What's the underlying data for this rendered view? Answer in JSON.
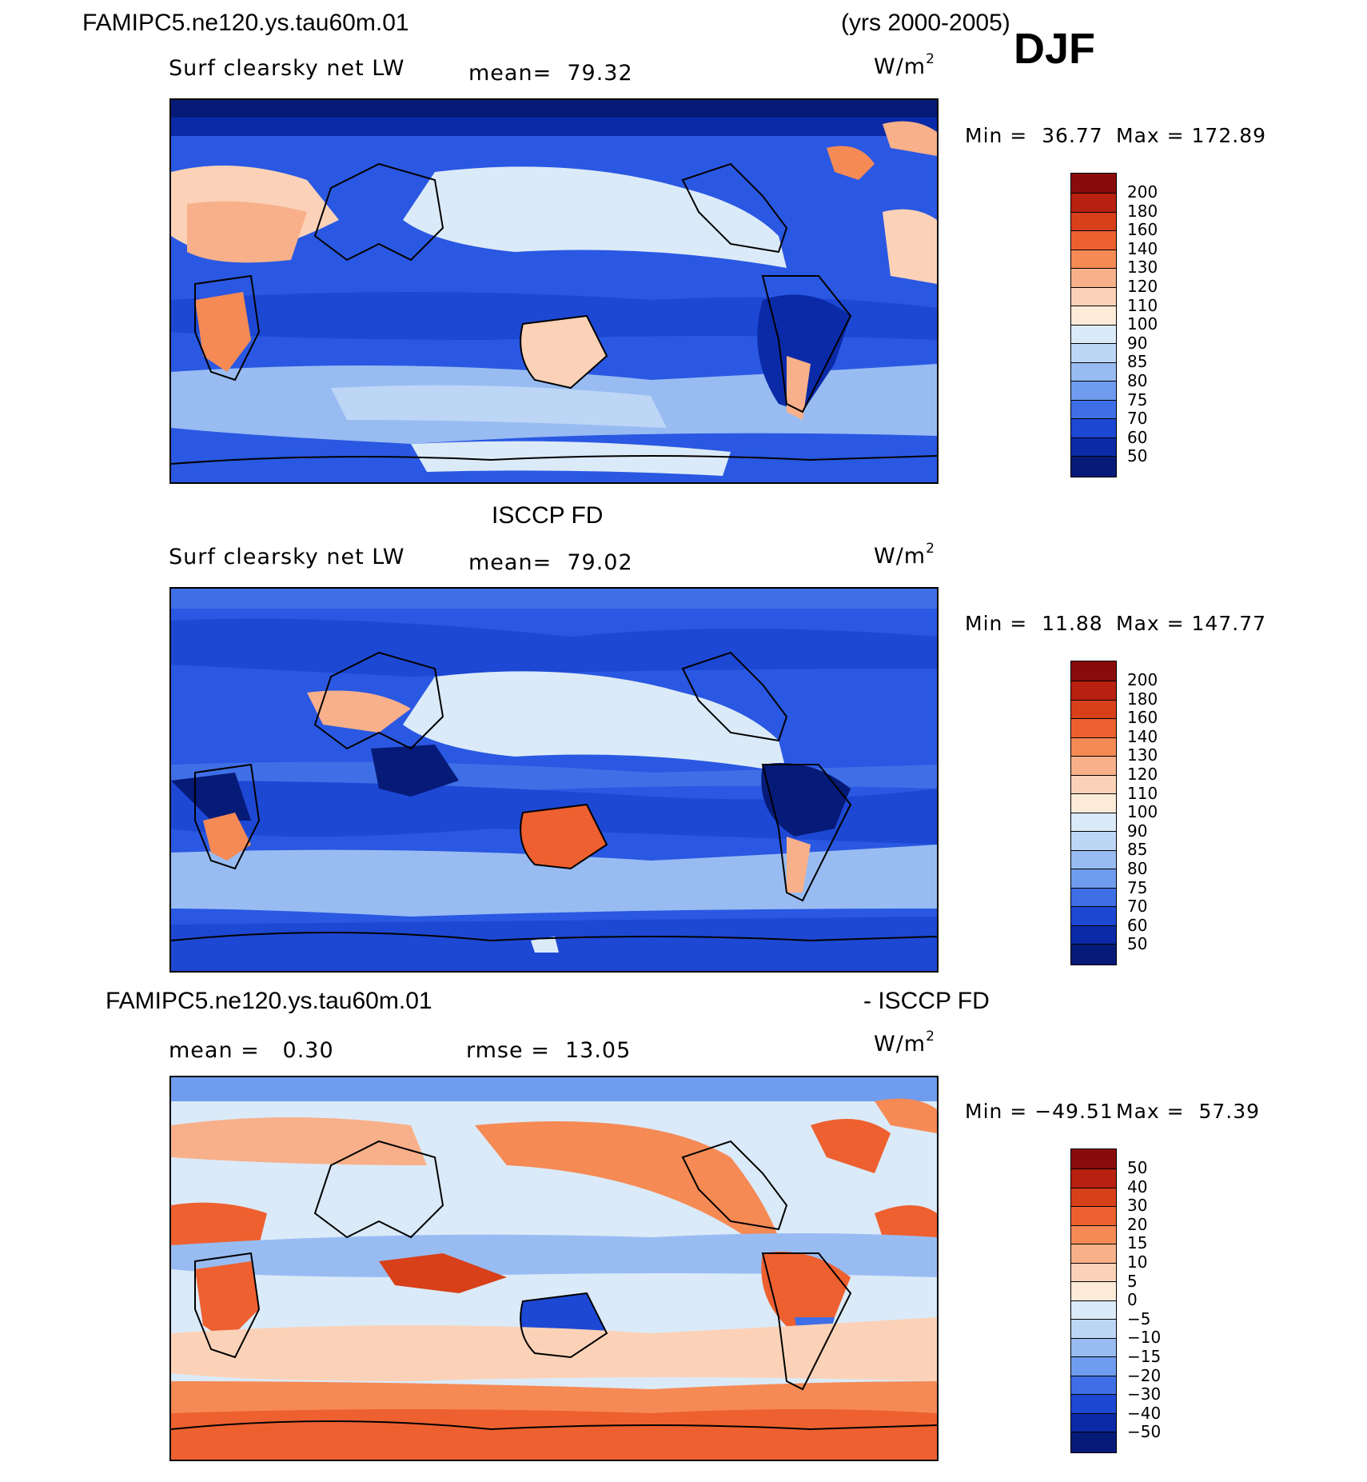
{
  "figure": {
    "case_name": "FAMIPC5.ne120.ys.tau60m.01",
    "years": "(yrs 2000-2005)",
    "season": "DJF"
  },
  "panels": [
    {
      "id": "model",
      "title": "",
      "variable": "Surf clearsky net LW",
      "mean_label": "mean=  79.32",
      "units": "W/m",
      "units_exp": "2",
      "min_label": "Min =  36.77",
      "max_label": "Max = 172.89",
      "colorbar_labels": [
        "200",
        "180",
        "160",
        "140",
        "130",
        "120",
        "110",
        "100",
        "90",
        "85",
        "80",
        "75",
        "70",
        "60",
        "50"
      ]
    },
    {
      "id": "obs",
      "title": "ISCCP FD",
      "variable": "Surf clearsky net LW",
      "mean_label": "mean=  79.02",
      "units": "W/m",
      "units_exp": "2",
      "min_label": "Min =  11.88",
      "max_label": "Max = 147.77",
      "colorbar_labels": [
        "200",
        "180",
        "160",
        "140",
        "130",
        "120",
        "110",
        "100",
        "90",
        "85",
        "80",
        "75",
        "70",
        "60",
        "50"
      ]
    },
    {
      "id": "diff",
      "title_left": "FAMIPC5.ne120.ys.tau60m.01",
      "title_right": "- ISCCP FD",
      "mean_label": "mean =   0.30",
      "rmse_label": "rmse =  13.05",
      "units": "W/m",
      "units_exp": "2",
      "min_label": "Min = −49.51",
      "max_label": "Max =  57.39",
      "colorbar_labels": [
        "50",
        "40",
        "30",
        "20",
        "15",
        "10",
        "5",
        "0",
        "−5",
        "−10",
        "−15",
        "−20",
        "−30",
        "−40",
        "−50"
      ]
    }
  ],
  "colors": {
    "abs_scale": [
      "#8a0b0b",
      "#b82010",
      "#d8401a",
      "#ee6030",
      "#f58a55",
      "#f8b08a",
      "#fbd2b8",
      "#fcebd8",
      "#dbeaf8",
      "#bdd6f6",
      "#98bcf2",
      "#6f9cee",
      "#3f6fe6",
      "#1d48d4",
      "#0b2aa8",
      "#061a78"
    ],
    "diff_scale": [
      "#8a0b0b",
      "#b82010",
      "#d8401a",
      "#ee6030",
      "#f58a55",
      "#f8b08a",
      "#fbd2b8",
      "#fcebd8",
      "#dbeaf8",
      "#bdd6f6",
      "#98bcf2",
      "#6f9cee",
      "#3f6fe6",
      "#1d48d4",
      "#0b2aa8",
      "#061a78"
    ]
  }
}
